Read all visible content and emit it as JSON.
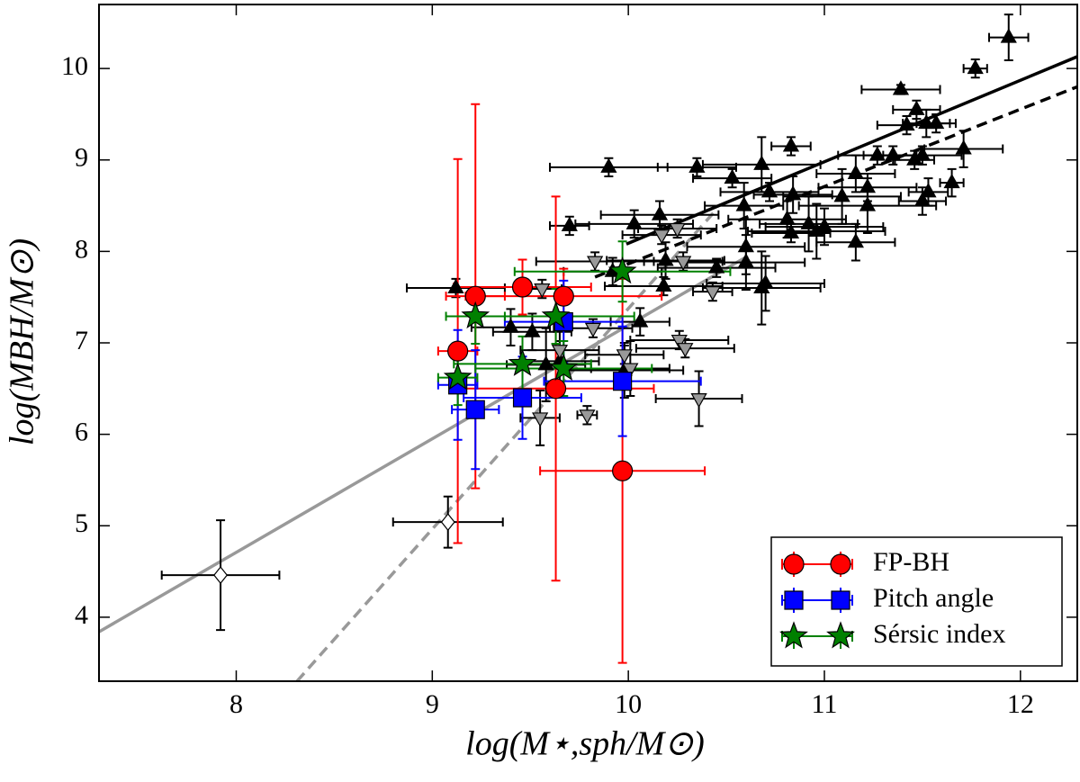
{
  "chart_data": {
    "type": "scatter",
    "xlabel": "log(M⋆,sph/M⊙)",
    "ylabel": "log(MBH/M⊙)",
    "xlim": [
      7.3,
      12.29
    ],
    "ylim": [
      3.3,
      10.7
    ],
    "xticks": [
      8,
      9,
      10,
      11,
      12
    ],
    "yticks": [
      4,
      5,
      6,
      7,
      8,
      9,
      10
    ],
    "legend": "lower right",
    "lines": [
      {
        "x": [
          9.99,
          12.29
        ],
        "y": [
          8.08,
          10.13
        ],
        "color": "#000000",
        "dash": false
      },
      {
        "x": [
          9.83,
          12.29
        ],
        "y": [
          7.72,
          9.8
        ],
        "color": "#000000",
        "dash": true
      },
      {
        "x": [
          7.3,
          10.61
        ],
        "y": [
          3.84,
          7.95
        ],
        "color": "#999999",
        "dash": false
      },
      {
        "x": [
          8.31,
          10.45
        ],
        "y": [
          3.3,
          8.46
        ],
        "color": "#999999",
        "dash": true
      }
    ],
    "series": [
      {
        "marker": "triangle-up",
        "color": "#000000",
        "errcolor": "#000000",
        "x": [
          11.94,
          11.77,
          11.39,
          11.47,
          11.42,
          11.52,
          11.57,
          11.35,
          11.46,
          11.5,
          11.27,
          11.71,
          10.83,
          11.16,
          11.22,
          11.53,
          11.5,
          11.65,
          10.72,
          10.68,
          10.53,
          10.35,
          9.9,
          11.09,
          11.22,
          10.59,
          10.81,
          10.84,
          10.83,
          10.92,
          10.96,
          11.0,
          11.16,
          9.7,
          10.03,
          10.16,
          10.19,
          10.6,
          10.45,
          10.6,
          10.68,
          10.7,
          10.18,
          9.92,
          9.12,
          10.06,
          9.51,
          9.4,
          9.58,
          9.65,
          9.98
        ],
        "y": [
          10.34,
          10.0,
          9.77,
          9.55,
          9.38,
          9.4,
          9.4,
          9.05,
          9.0,
          9.05,
          9.05,
          9.12,
          9.15,
          8.85,
          8.7,
          8.65,
          8.55,
          8.75,
          8.65,
          8.95,
          8.8,
          8.92,
          8.92,
          8.6,
          8.5,
          8.5,
          8.35,
          8.62,
          8.2,
          8.3,
          8.22,
          8.27,
          8.1,
          8.28,
          8.3,
          8.4,
          7.9,
          8.05,
          7.82,
          7.88,
          7.6,
          7.65,
          7.62,
          7.78,
          7.6,
          7.23,
          7.12,
          7.17,
          6.76,
          6.8,
          6.7
        ],
        "xerr": [
          0.1,
          0.06,
          0.2,
          0.12,
          0.15,
          0.12,
          0.1,
          0.15,
          0.1,
          0.2,
          0.2,
          0.2,
          0.1,
          0.2,
          0.25,
          0.1,
          0.12,
          0.06,
          0.25,
          0.3,
          0.2,
          0.2,
          0.3,
          0.3,
          0.35,
          0.2,
          0.3,
          0.2,
          0.2,
          0.25,
          0.35,
          0.3,
          0.2,
          0.1,
          0.3,
          0.3,
          0.3,
          0.3,
          0.3,
          0.3,
          0.3,
          0.3,
          0.3,
          0.25,
          0.25,
          0.15,
          0.2,
          0.2,
          0.2,
          0.2,
          0.3
        ],
        "yerr": [
          0.25,
          0.1,
          0.05,
          0.1,
          0.1,
          0.15,
          0.1,
          0.1,
          0.1,
          0.1,
          0.1,
          0.2,
          0.1,
          0.2,
          0.15,
          0.15,
          0.15,
          0.15,
          0.1,
          0.3,
          0.1,
          0.1,
          0.1,
          0.3,
          0.3,
          0.25,
          0.2,
          0.2,
          0.1,
          0.3,
          0.3,
          0.2,
          0.2,
          0.1,
          0.15,
          0.15,
          0.2,
          0.3,
          0.1,
          0.3,
          0.4,
          0.3,
          0.1,
          0.15,
          0.1,
          0.15,
          0.2,
          0.2,
          0.4,
          0.4,
          0.3
        ]
      },
      {
        "marker": "triangle-down",
        "color": "#999999",
        "errcolor": "#000000",
        "x": [
          9.56,
          9.83,
          10.17,
          10.25,
          10.28,
          10.43,
          9.82,
          9.65,
          9.98,
          10.01,
          10.26,
          10.29,
          10.36,
          9.55,
          9.79
        ],
        "y": [
          7.59,
          7.89,
          8.18,
          8.25,
          7.89,
          7.56,
          7.16,
          6.92,
          6.87,
          6.72,
          7.03,
          6.94,
          6.39,
          6.18,
          6.21
        ],
        "xerr": [
          0.1,
          0.3,
          0.2,
          0.2,
          0.2,
          0.1,
          0.2,
          0.2,
          0.2,
          0.2,
          0.25,
          0.25,
          0.22,
          0.1,
          0.05
        ],
        "yerr": [
          0.1,
          0.1,
          0.1,
          0.1,
          0.1,
          0.1,
          0.1,
          0.1,
          0.1,
          0.3,
          0.1,
          0.1,
          0.3,
          0.3,
          0.1
        ]
      },
      {
        "marker": "diamond",
        "color": "#ffffff",
        "errcolor": "#000000",
        "x": [
          7.92,
          9.08
        ],
        "y": [
          4.46,
          5.04
        ],
        "xerr": [
          0.3,
          0.28
        ],
        "yerr": [
          0.6,
          0.28
        ]
      },
      {
        "name": "FP-BH",
        "marker": "circle",
        "color": "#ff0000",
        "errcolor": "#ff0000",
        "x": [
          9.13,
          9.22,
          9.46,
          9.67,
          9.63,
          9.97
        ],
        "y": [
          6.91,
          7.51,
          7.61,
          7.51,
          6.5,
          5.6
        ],
        "xerr": [
          0.1,
          0.15,
          0.35,
          0.5,
          0.5,
          0.42
        ],
        "yerr": [
          2.1,
          2.1,
          0.3,
          0.3,
          2.1,
          2.1
        ]
      },
      {
        "name": "Pitch angle",
        "marker": "square",
        "color": "#0000ff",
        "errcolor": "#0000ff",
        "x": [
          9.13,
          9.22,
          9.46,
          9.67,
          9.97
        ],
        "y": [
          6.54,
          6.27,
          6.4,
          7.23,
          6.58
        ],
        "xerr": [
          0.1,
          0.12,
          0.3,
          0.3,
          0.4
        ],
        "yerr": [
          0.6,
          0.65,
          0.45,
          0.45,
          0.6
        ]
      },
      {
        "name": "Sérsic index",
        "marker": "star",
        "color": "#008000",
        "errcolor": "#008000",
        "x": [
          9.13,
          9.22,
          9.46,
          9.63,
          9.67,
          9.97
        ],
        "y": [
          6.62,
          7.29,
          6.77,
          7.29,
          6.72,
          7.78
        ],
        "xerr": [
          0.1,
          0.15,
          0.35,
          0.4,
          0.45,
          0.55
        ],
        "yerr": [
          0.3,
          0.3,
          0.3,
          0.3,
          0.3,
          0.33
        ]
      }
    ]
  }
}
